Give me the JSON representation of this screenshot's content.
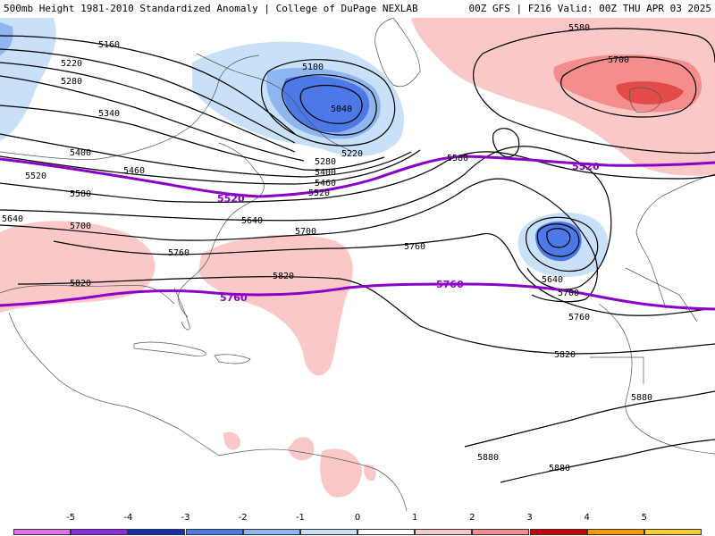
{
  "header": {
    "left": "500mb Height 1981-2010 Standardized Anomaly | College of DuPage NEXLAB",
    "right": "00Z GFS | F216 Valid: 00Z THU APR 03 2025"
  },
  "colors": {
    "contour": "#000000",
    "highlight": "#8a00c8",
    "coast": "#555555",
    "pos1": "#fbc8c8",
    "pos2": "#f58d8d",
    "pos3": "#e34b4b",
    "neg1": "#c8e0f8",
    "neg2": "#8fb6f0",
    "neg3": "#4d79e6"
  },
  "contour_labels": {
    "l5160": "5160",
    "l5220a": "5220",
    "l5280a": "5280",
    "l5340": "5340",
    "l5400a": "5400",
    "l5460a": "5460",
    "l5520a": "5520",
    "l5580a": "5580",
    "l5640a": "5640",
    "l5700a": "5700",
    "l5760a": "5760",
    "l5820a": "5820",
    "l5100": "5100",
    "l5040": "5040",
    "l5220b": "5220",
    "l5280b": "5280",
    "l5400b": "5400",
    "l5460b": "5460",
    "l5520b": "5520",
    "l5640b": "5640",
    "l5700b": "5700",
    "l5760b": "5760",
    "l5820b": "5820",
    "l5580b": "5580",
    "l5580c": "5580",
    "l5700c": "5700",
    "l5640c": "5640",
    "l5700d": "5700",
    "l5760c": "5760",
    "l5820c": "5820",
    "l5880a": "5880",
    "l5880b": "5880",
    "l5880c": "5880"
  },
  "highlight_labels": {
    "h5520a": "5520",
    "h5520b": "5520",
    "h5760a": "5760",
    "h5760b": "5760"
  },
  "colorbar": {
    "ticks": [
      "-5",
      "-4",
      "-3",
      "-2",
      "-1",
      "0",
      "1",
      "2",
      "3",
      "4",
      "5"
    ],
    "segments": [
      {
        "from": -6,
        "to": -5,
        "color": "#e070e8"
      },
      {
        "from": -5,
        "to": -4,
        "color": "#8a2be2"
      },
      {
        "from": -4,
        "to": -3,
        "color": "#1030b0"
      },
      {
        "from": -3,
        "to": -2,
        "color": "#4d79e6"
      },
      {
        "from": -2,
        "to": -1,
        "color": "#8fb6f0"
      },
      {
        "from": -1,
        "to": 0,
        "color": "#c8e0f8"
      },
      {
        "from": 0,
        "to": 1,
        "color": "#ffffff"
      },
      {
        "from": 1,
        "to": 2,
        "color": "#fbc8c8"
      },
      {
        "from": 2,
        "to": 3,
        "color": "#f58d8d"
      },
      {
        "from": 3,
        "to": 4,
        "color": "#c80000"
      },
      {
        "from": 4,
        "to": 5,
        "color": "#ff9900"
      },
      {
        "from": 5,
        "to": 6,
        "color": "#ffcc33"
      }
    ]
  }
}
